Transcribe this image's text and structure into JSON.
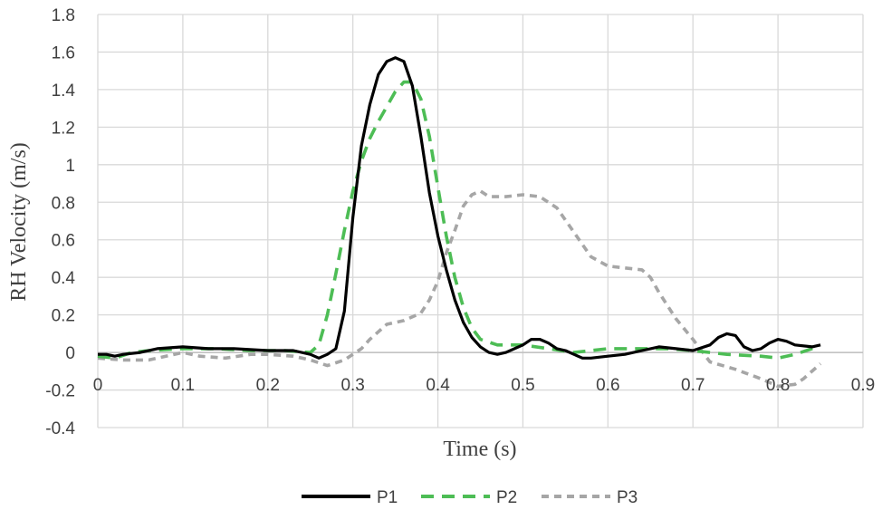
{
  "chart_data": {
    "type": "line",
    "title": "",
    "xlabel": "Time (s)",
    "ylabel": "RH Velocity (m/s)",
    "xlim": [
      0,
      0.9
    ],
    "ylim": [
      -0.4,
      1.8
    ],
    "x_ticks": [
      0,
      0.1,
      0.2,
      0.3,
      0.4,
      0.5,
      0.6,
      0.7,
      0.8,
      0.9
    ],
    "x_tick_labels": [
      "0",
      "0.1",
      "0.2",
      "0.3",
      "0.4",
      "0.5",
      "0.6",
      "0.7",
      "0.8",
      "0.9"
    ],
    "y_ticks": [
      -0.4,
      -0.2,
      0,
      0.2,
      0.4,
      0.6,
      0.8,
      1,
      1.2,
      1.4,
      1.6,
      1.8
    ],
    "y_tick_labels": [
      "-0.4",
      "-0.2",
      "0",
      "0.2",
      "0.4",
      "0.6",
      "0.8",
      "1",
      "1.2",
      "1.4",
      "1.6",
      "1.8"
    ],
    "grid": true,
    "legend_position": "bottom",
    "series": [
      {
        "name": "P1",
        "color": "#000000",
        "dash": "solid",
        "points": [
          [
            0,
            -0.01
          ],
          [
            0.01,
            -0.01
          ],
          [
            0.02,
            -0.02
          ],
          [
            0.03,
            -0.01
          ],
          [
            0.05,
            0.0
          ],
          [
            0.07,
            0.02
          ],
          [
            0.1,
            0.03
          ],
          [
            0.13,
            0.02
          ],
          [
            0.16,
            0.02
          ],
          [
            0.2,
            0.01
          ],
          [
            0.23,
            0.01
          ],
          [
            0.25,
            -0.01
          ],
          [
            0.26,
            -0.03
          ],
          [
            0.27,
            -0.01
          ],
          [
            0.28,
            0.02
          ],
          [
            0.29,
            0.22
          ],
          [
            0.3,
            0.72
          ],
          [
            0.31,
            1.1
          ],
          [
            0.32,
            1.32
          ],
          [
            0.33,
            1.48
          ],
          [
            0.34,
            1.55
          ],
          [
            0.35,
            1.57
          ],
          [
            0.36,
            1.55
          ],
          [
            0.37,
            1.42
          ],
          [
            0.38,
            1.15
          ],
          [
            0.39,
            0.85
          ],
          [
            0.4,
            0.62
          ],
          [
            0.41,
            0.44
          ],
          [
            0.42,
            0.28
          ],
          [
            0.43,
            0.16
          ],
          [
            0.44,
            0.08
          ],
          [
            0.45,
            0.03
          ],
          [
            0.46,
            0.0
          ],
          [
            0.47,
            -0.01
          ],
          [
            0.48,
            0.0
          ],
          [
            0.5,
            0.04
          ],
          [
            0.51,
            0.07
          ],
          [
            0.52,
            0.07
          ],
          [
            0.53,
            0.05
          ],
          [
            0.54,
            0.02
          ],
          [
            0.55,
            0.01
          ],
          [
            0.56,
            -0.01
          ],
          [
            0.57,
            -0.03
          ],
          [
            0.58,
            -0.03
          ],
          [
            0.6,
            -0.02
          ],
          [
            0.62,
            -0.01
          ],
          [
            0.64,
            0.01
          ],
          [
            0.66,
            0.03
          ],
          [
            0.68,
            0.02
          ],
          [
            0.7,
            0.01
          ],
          [
            0.72,
            0.04
          ],
          [
            0.73,
            0.08
          ],
          [
            0.74,
            0.1
          ],
          [
            0.75,
            0.09
          ],
          [
            0.76,
            0.03
          ],
          [
            0.77,
            0.01
          ],
          [
            0.78,
            0.02
          ],
          [
            0.79,
            0.05
          ],
          [
            0.8,
            0.07
          ],
          [
            0.81,
            0.06
          ],
          [
            0.82,
            0.04
          ],
          [
            0.84,
            0.03
          ],
          [
            0.85,
            0.04
          ]
        ]
      },
      {
        "name": "P2",
        "color": "#4dbd55",
        "dash": "dashed",
        "points": [
          [
            0,
            -0.02
          ],
          [
            0.02,
            -0.03
          ],
          [
            0.04,
            0.0
          ],
          [
            0.06,
            0.01
          ],
          [
            0.1,
            0.02
          ],
          [
            0.14,
            0.02
          ],
          [
            0.18,
            0.01
          ],
          [
            0.22,
            0.01
          ],
          [
            0.25,
            0.0
          ],
          [
            0.26,
            0.04
          ],
          [
            0.27,
            0.2
          ],
          [
            0.28,
            0.42
          ],
          [
            0.29,
            0.65
          ],
          [
            0.3,
            0.86
          ],
          [
            0.31,
            1.02
          ],
          [
            0.32,
            1.14
          ],
          [
            0.33,
            1.23
          ],
          [
            0.34,
            1.31
          ],
          [
            0.35,
            1.39
          ],
          [
            0.36,
            1.44
          ],
          [
            0.37,
            1.44
          ],
          [
            0.38,
            1.35
          ],
          [
            0.39,
            1.15
          ],
          [
            0.4,
            0.88
          ],
          [
            0.41,
            0.62
          ],
          [
            0.42,
            0.4
          ],
          [
            0.43,
            0.24
          ],
          [
            0.44,
            0.13
          ],
          [
            0.45,
            0.07
          ],
          [
            0.47,
            0.04
          ],
          [
            0.5,
            0.04
          ],
          [
            0.53,
            0.02
          ],
          [
            0.56,
            0.0
          ],
          [
            0.6,
            0.02
          ],
          [
            0.64,
            0.02
          ],
          [
            0.67,
            0.02
          ],
          [
            0.7,
            0.01
          ],
          [
            0.74,
            -0.01
          ],
          [
            0.78,
            -0.02
          ],
          [
            0.8,
            -0.03
          ],
          [
            0.82,
            -0.01
          ],
          [
            0.84,
            0.02
          ],
          [
            0.85,
            0.03
          ]
        ]
      },
      {
        "name": "P3",
        "color": "#a6a6a6",
        "dash": "dashed",
        "points": [
          [
            0,
            -0.03
          ],
          [
            0.03,
            -0.04
          ],
          [
            0.06,
            -0.04
          ],
          [
            0.09,
            -0.01
          ],
          [
            0.1,
            0.0
          ],
          [
            0.12,
            -0.02
          ],
          [
            0.15,
            -0.03
          ],
          [
            0.18,
            -0.01
          ],
          [
            0.2,
            -0.01
          ],
          [
            0.23,
            -0.02
          ],
          [
            0.25,
            -0.04
          ],
          [
            0.27,
            -0.07
          ],
          [
            0.29,
            -0.04
          ],
          [
            0.31,
            0.02
          ],
          [
            0.32,
            0.07
          ],
          [
            0.34,
            0.15
          ],
          [
            0.36,
            0.17
          ],
          [
            0.38,
            0.21
          ],
          [
            0.39,
            0.28
          ],
          [
            0.4,
            0.38
          ],
          [
            0.41,
            0.53
          ],
          [
            0.42,
            0.65
          ],
          [
            0.43,
            0.78
          ],
          [
            0.44,
            0.84
          ],
          [
            0.45,
            0.86
          ],
          [
            0.46,
            0.83
          ],
          [
            0.48,
            0.83
          ],
          [
            0.5,
            0.84
          ],
          [
            0.52,
            0.83
          ],
          [
            0.54,
            0.77
          ],
          [
            0.56,
            0.64
          ],
          [
            0.58,
            0.51
          ],
          [
            0.6,
            0.46
          ],
          [
            0.62,
            0.45
          ],
          [
            0.64,
            0.44
          ],
          [
            0.65,
            0.4
          ],
          [
            0.66,
            0.32
          ],
          [
            0.68,
            0.18
          ],
          [
            0.7,
            0.07
          ],
          [
            0.72,
            -0.05
          ],
          [
            0.75,
            -0.09
          ],
          [
            0.78,
            -0.14
          ],
          [
            0.8,
            -0.18
          ],
          [
            0.82,
            -0.17
          ],
          [
            0.83,
            -0.14
          ],
          [
            0.85,
            -0.06
          ]
        ]
      }
    ]
  }
}
